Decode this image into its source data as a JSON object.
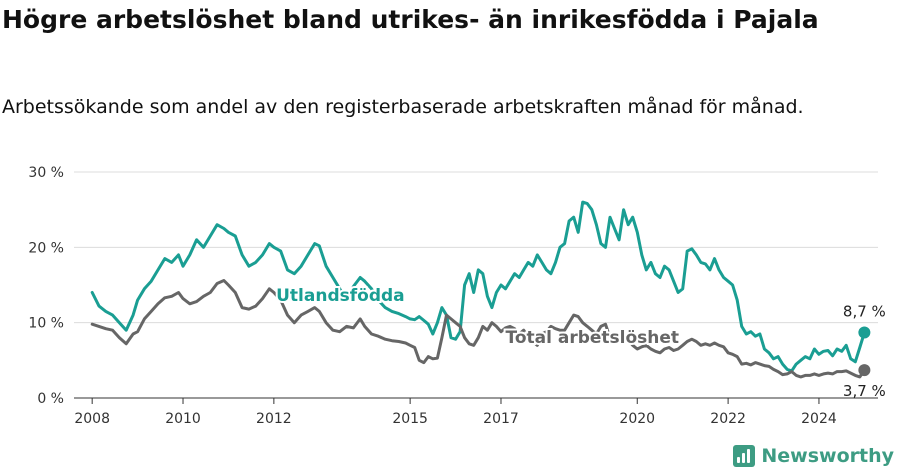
{
  "header": {
    "title": "Högre arbetslöshet bland utrikes- än inrikesfödda i Pajala",
    "subtitle": "Arbetssökande som andel av den registerbaserade arbetskraften månad för månad."
  },
  "brand": {
    "name": "Newsworthy",
    "icon": "bar-chart-icon",
    "color": "#3d9c83"
  },
  "chart_data": {
    "type": "line",
    "ylim": [
      0,
      30
    ],
    "yticks": [
      0,
      10,
      20,
      30
    ],
    "ytick_labels": [
      "0 %",
      "10 %",
      "20 %",
      "30 %"
    ],
    "xlim": [
      2007.6,
      2025.3
    ],
    "xticks": [
      2008,
      2010,
      2012,
      2015,
      2017,
      2020,
      2022,
      2024
    ],
    "xtick_labels": [
      "2008",
      "2010",
      "2012",
      "2015",
      "2017",
      "2020",
      "2022",
      "2024"
    ],
    "grid": true,
    "series": [
      {
        "name": "Utlandsfödda",
        "color": "#1a9e93",
        "end_label": "8,7 %",
        "points": [
          [
            2008.0,
            14
          ],
          [
            2008.15,
            12.2
          ],
          [
            2008.3,
            11.5
          ],
          [
            2008.45,
            11
          ],
          [
            2008.6,
            10
          ],
          [
            2008.75,
            9
          ],
          [
            2008.9,
            11
          ],
          [
            2009.0,
            13
          ],
          [
            2009.15,
            14.5
          ],
          [
            2009.3,
            15.5
          ],
          [
            2009.45,
            17
          ],
          [
            2009.6,
            18.5
          ],
          [
            2009.75,
            18
          ],
          [
            2009.9,
            19
          ],
          [
            2010.0,
            17.5
          ],
          [
            2010.15,
            19
          ],
          [
            2010.3,
            21
          ],
          [
            2010.45,
            20
          ],
          [
            2010.6,
            21.5
          ],
          [
            2010.75,
            23
          ],
          [
            2010.9,
            22.5
          ],
          [
            2011.0,
            22
          ],
          [
            2011.15,
            21.5
          ],
          [
            2011.3,
            19
          ],
          [
            2011.45,
            17.5
          ],
          [
            2011.6,
            18
          ],
          [
            2011.75,
            19
          ],
          [
            2011.9,
            20.5
          ],
          [
            2012.0,
            20
          ],
          [
            2012.15,
            19.5
          ],
          [
            2012.3,
            17
          ],
          [
            2012.45,
            16.5
          ],
          [
            2012.6,
            17.5
          ],
          [
            2012.75,
            19
          ],
          [
            2012.9,
            20.5
          ],
          [
            2013.0,
            20.2
          ],
          [
            2013.15,
            17.5
          ],
          [
            2013.3,
            16
          ],
          [
            2013.45,
            14.5
          ],
          [
            2013.6,
            13
          ],
          [
            2013.75,
            14.8
          ],
          [
            2013.9,
            16
          ],
          [
            2014.0,
            15.5
          ],
          [
            2014.15,
            14.5
          ],
          [
            2014.3,
            13
          ],
          [
            2014.45,
            12
          ],
          [
            2014.6,
            11.5
          ],
          [
            2014.75,
            11.2
          ],
          [
            2014.9,
            10.8
          ],
          [
            2015.0,
            10.5
          ],
          [
            2015.1,
            10.4
          ],
          [
            2015.2,
            10.8
          ],
          [
            2015.3,
            10.3
          ],
          [
            2015.4,
            9.8
          ],
          [
            2015.5,
            8.5
          ],
          [
            2015.6,
            10
          ],
          [
            2015.7,
            12
          ],
          [
            2015.8,
            11
          ],
          [
            2015.9,
            8
          ],
          [
            2016.0,
            7.8
          ],
          [
            2016.1,
            8.8
          ],
          [
            2016.2,
            15
          ],
          [
            2016.3,
            16.5
          ],
          [
            2016.4,
            14
          ],
          [
            2016.5,
            17
          ],
          [
            2016.6,
            16.5
          ],
          [
            2016.7,
            13.5
          ],
          [
            2016.8,
            12
          ],
          [
            2016.9,
            14
          ],
          [
            2017.0,
            15
          ],
          [
            2017.1,
            14.5
          ],
          [
            2017.2,
            15.5
          ],
          [
            2017.3,
            16.5
          ],
          [
            2017.4,
            16
          ],
          [
            2017.5,
            17
          ],
          [
            2017.6,
            18
          ],
          [
            2017.7,
            17.5
          ],
          [
            2017.8,
            19
          ],
          [
            2017.9,
            18
          ],
          [
            2018.0,
            17
          ],
          [
            2018.1,
            16.5
          ],
          [
            2018.2,
            18
          ],
          [
            2018.3,
            20
          ],
          [
            2018.4,
            20.5
          ],
          [
            2018.5,
            23.5
          ],
          [
            2018.6,
            24
          ],
          [
            2018.7,
            22
          ],
          [
            2018.8,
            26
          ],
          [
            2018.9,
            25.8
          ],
          [
            2019.0,
            25
          ],
          [
            2019.1,
            23
          ],
          [
            2019.2,
            20.5
          ],
          [
            2019.3,
            20
          ],
          [
            2019.4,
            24
          ],
          [
            2019.5,
            22.5
          ],
          [
            2019.6,
            21
          ],
          [
            2019.7,
            25
          ],
          [
            2019.8,
            23
          ],
          [
            2019.9,
            24
          ],
          [
            2020.0,
            22
          ],
          [
            2020.1,
            19
          ],
          [
            2020.2,
            17
          ],
          [
            2020.3,
            18
          ],
          [
            2020.4,
            16.5
          ],
          [
            2020.5,
            16
          ],
          [
            2020.6,
            17.5
          ],
          [
            2020.7,
            17
          ],
          [
            2020.8,
            15.5
          ],
          [
            2020.9,
            14
          ],
          [
            2021.0,
            14.5
          ],
          [
            2021.1,
            19.5
          ],
          [
            2021.2,
            19.8
          ],
          [
            2021.3,
            19
          ],
          [
            2021.4,
            18
          ],
          [
            2021.5,
            17.8
          ],
          [
            2021.6,
            17
          ],
          [
            2021.7,
            18.5
          ],
          [
            2021.8,
            17
          ],
          [
            2021.9,
            16
          ],
          [
            2022.0,
            15.5
          ],
          [
            2022.1,
            15
          ],
          [
            2022.2,
            13
          ],
          [
            2022.3,
            9.5
          ],
          [
            2022.4,
            8.5
          ],
          [
            2022.5,
            8.8
          ],
          [
            2022.6,
            8.2
          ],
          [
            2022.7,
            8.5
          ],
          [
            2022.8,
            6.5
          ],
          [
            2022.9,
            6
          ],
          [
            2023.0,
            5.2
          ],
          [
            2023.1,
            5.5
          ],
          [
            2023.2,
            4.5
          ],
          [
            2023.3,
            3.8
          ],
          [
            2023.4,
            3.6
          ],
          [
            2023.5,
            4.5
          ],
          [
            2023.6,
            5
          ],
          [
            2023.7,
            5.5
          ],
          [
            2023.8,
            5.2
          ],
          [
            2023.9,
            6.5
          ],
          [
            2024.0,
            5.8
          ],
          [
            2024.1,
            6.2
          ],
          [
            2024.2,
            6.3
          ],
          [
            2024.3,
            5.6
          ],
          [
            2024.4,
            6.5
          ],
          [
            2024.5,
            6.2
          ],
          [
            2024.6,
            7
          ],
          [
            2024.7,
            5.2
          ],
          [
            2024.8,
            4.8
          ],
          [
            2024.9,
            6.7
          ],
          [
            2025.0,
            8.7
          ]
        ]
      },
      {
        "name": "Total arbetslöshet",
        "color": "#666666",
        "end_label": "3,7 %",
        "points": [
          [
            2008.0,
            9.8
          ],
          [
            2008.15,
            9.5
          ],
          [
            2008.3,
            9.2
          ],
          [
            2008.45,
            9
          ],
          [
            2008.6,
            8
          ],
          [
            2008.75,
            7.2
          ],
          [
            2008.9,
            8.5
          ],
          [
            2009.0,
            8.8
          ],
          [
            2009.15,
            10.5
          ],
          [
            2009.3,
            11.5
          ],
          [
            2009.45,
            12.5
          ],
          [
            2009.6,
            13.3
          ],
          [
            2009.75,
            13.5
          ],
          [
            2009.9,
            14
          ],
          [
            2010.0,
            13.2
          ],
          [
            2010.15,
            12.5
          ],
          [
            2010.3,
            12.8
          ],
          [
            2010.45,
            13.5
          ],
          [
            2010.6,
            14
          ],
          [
            2010.75,
            15.2
          ],
          [
            2010.9,
            15.6
          ],
          [
            2011.0,
            15
          ],
          [
            2011.15,
            14
          ],
          [
            2011.3,
            12
          ],
          [
            2011.45,
            11.8
          ],
          [
            2011.6,
            12.2
          ],
          [
            2011.75,
            13.2
          ],
          [
            2011.9,
            14.5
          ],
          [
            2012.0,
            14
          ],
          [
            2012.15,
            13
          ],
          [
            2012.3,
            11
          ],
          [
            2012.45,
            10
          ],
          [
            2012.6,
            11
          ],
          [
            2012.75,
            11.5
          ],
          [
            2012.9,
            12
          ],
          [
            2013.0,
            11.5
          ],
          [
            2013.15,
            10
          ],
          [
            2013.3,
            9
          ],
          [
            2013.45,
            8.8
          ],
          [
            2013.6,
            9.5
          ],
          [
            2013.75,
            9.3
          ],
          [
            2013.9,
            10.5
          ],
          [
            2014.0,
            9.5
          ],
          [
            2014.15,
            8.5
          ],
          [
            2014.3,
            8.2
          ],
          [
            2014.45,
            7.8
          ],
          [
            2014.6,
            7.6
          ],
          [
            2014.75,
            7.5
          ],
          [
            2014.9,
            7.3
          ],
          [
            2015.0,
            7
          ],
          [
            2015.1,
            6.7
          ],
          [
            2015.2,
            5
          ],
          [
            2015.3,
            4.7
          ],
          [
            2015.4,
            5.5
          ],
          [
            2015.5,
            5.2
          ],
          [
            2015.6,
            5.3
          ],
          [
            2015.7,
            8
          ],
          [
            2015.8,
            11
          ],
          [
            2015.9,
            10.5
          ],
          [
            2016.0,
            10
          ],
          [
            2016.1,
            9.5
          ],
          [
            2016.2,
            8
          ],
          [
            2016.3,
            7.2
          ],
          [
            2016.4,
            7
          ],
          [
            2016.5,
            8
          ],
          [
            2016.6,
            9.5
          ],
          [
            2016.7,
            9
          ],
          [
            2016.8,
            10
          ],
          [
            2016.9,
            9.5
          ],
          [
            2017.0,
            8.8
          ],
          [
            2017.1,
            9.3
          ],
          [
            2017.2,
            9.5
          ],
          [
            2017.3,
            9.2
          ],
          [
            2017.4,
            8.5
          ],
          [
            2017.5,
            9
          ],
          [
            2017.6,
            8
          ],
          [
            2017.7,
            7.5
          ],
          [
            2017.8,
            7
          ],
          [
            2017.9,
            8.5
          ],
          [
            2018.0,
            8.8
          ],
          [
            2018.1,
            9.5
          ],
          [
            2018.2,
            9.2
          ],
          [
            2018.3,
            9
          ],
          [
            2018.4,
            9
          ],
          [
            2018.5,
            10
          ],
          [
            2018.6,
            11
          ],
          [
            2018.7,
            10.8
          ],
          [
            2018.8,
            10
          ],
          [
            2018.9,
            9.5
          ],
          [
            2019.0,
            9
          ],
          [
            2019.1,
            8.5
          ],
          [
            2019.2,
            9.5
          ],
          [
            2019.3,
            9.8
          ],
          [
            2019.4,
            8
          ],
          [
            2019.5,
            8.5
          ],
          [
            2019.6,
            7.5
          ],
          [
            2019.7,
            8
          ],
          [
            2019.8,
            7.8
          ],
          [
            2019.9,
            7
          ],
          [
            2020.0,
            6.5
          ],
          [
            2020.1,
            6.8
          ],
          [
            2020.2,
            7
          ],
          [
            2020.3,
            6.5
          ],
          [
            2020.4,
            6.2
          ],
          [
            2020.5,
            6
          ],
          [
            2020.6,
            6.5
          ],
          [
            2020.7,
            6.7
          ],
          [
            2020.8,
            6.3
          ],
          [
            2020.9,
            6.5
          ],
          [
            2021.0,
            7
          ],
          [
            2021.1,
            7.5
          ],
          [
            2021.2,
            7.8
          ],
          [
            2021.3,
            7.5
          ],
          [
            2021.4,
            7
          ],
          [
            2021.5,
            7.2
          ],
          [
            2021.6,
            7
          ],
          [
            2021.7,
            7.3
          ],
          [
            2021.8,
            7
          ],
          [
            2021.9,
            6.8
          ],
          [
            2022.0,
            6
          ],
          [
            2022.1,
            5.8
          ],
          [
            2022.2,
            5.5
          ],
          [
            2022.3,
            4.5
          ],
          [
            2022.4,
            4.6
          ],
          [
            2022.5,
            4.4
          ],
          [
            2022.6,
            4.7
          ],
          [
            2022.7,
            4.5
          ],
          [
            2022.8,
            4.3
          ],
          [
            2022.9,
            4.2
          ],
          [
            2023.0,
            3.8
          ],
          [
            2023.1,
            3.5
          ],
          [
            2023.2,
            3.1
          ],
          [
            2023.3,
            3.2
          ],
          [
            2023.4,
            3.5
          ],
          [
            2023.5,
            3
          ],
          [
            2023.6,
            2.8
          ],
          [
            2023.7,
            3
          ],
          [
            2023.8,
            3
          ],
          [
            2023.9,
            3.2
          ],
          [
            2024.0,
            3
          ],
          [
            2024.1,
            3.2
          ],
          [
            2024.2,
            3.3
          ],
          [
            2024.3,
            3.2
          ],
          [
            2024.4,
            3.5
          ],
          [
            2024.5,
            3.5
          ],
          [
            2024.6,
            3.6
          ],
          [
            2024.7,
            3.3
          ],
          [
            2024.8,
            3
          ],
          [
            2024.9,
            2.8
          ],
          [
            2025.0,
            3.7
          ]
        ]
      }
    ]
  }
}
